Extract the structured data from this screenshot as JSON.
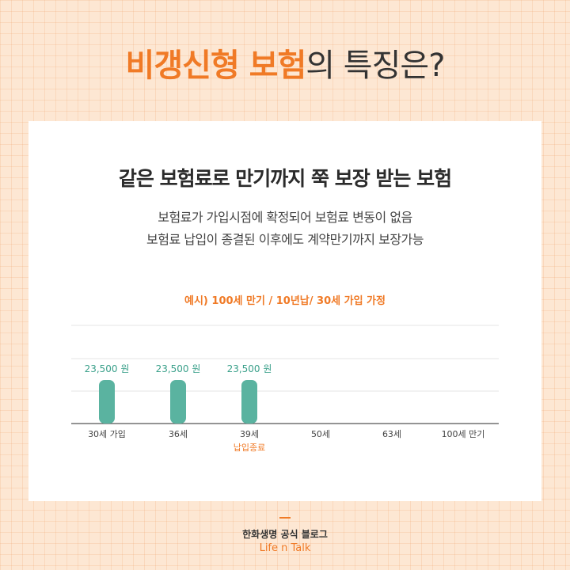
{
  "headline": {
    "accent": "비갱신형 보험",
    "rest": "의 특징은?"
  },
  "card": {
    "title": "같은 보험료로 만기까지 쭉 보장 받는 보험",
    "desc_line1": "보험료가 가입시점에 확정되어 보험료 변동이 없음",
    "desc_line2": "보험료 납입이 종결된 이후에도 계약만기까지 보장가능",
    "assumption": "예시) 100세 만기 / 10년납/ 30세 가입 가정"
  },
  "chart_data": {
    "type": "bar",
    "categories": [
      "30세 가입",
      "36세",
      "39세",
      "50세",
      "63세",
      "100세 만기"
    ],
    "values": [
      23500,
      23500,
      23500,
      null,
      null,
      null
    ],
    "value_labels": [
      "23,500 원",
      "23,500 원",
      "23,500 원",
      "",
      "",
      ""
    ],
    "sub_labels": [
      "",
      "",
      "납입종료",
      "",
      "",
      ""
    ],
    "bar_color": "#5ab3a0",
    "value_label_color": "#3aa08a",
    "sub_label_color": "#f07a26",
    "grid": true,
    "xlabel": "",
    "ylabel": ""
  },
  "footer": {
    "line1": "한화생명 공식 블로그",
    "line2": "Life n Talk"
  },
  "colors": {
    "accent": "#f07a26",
    "teal": "#5ab3a0",
    "background": "#fde7d3"
  }
}
